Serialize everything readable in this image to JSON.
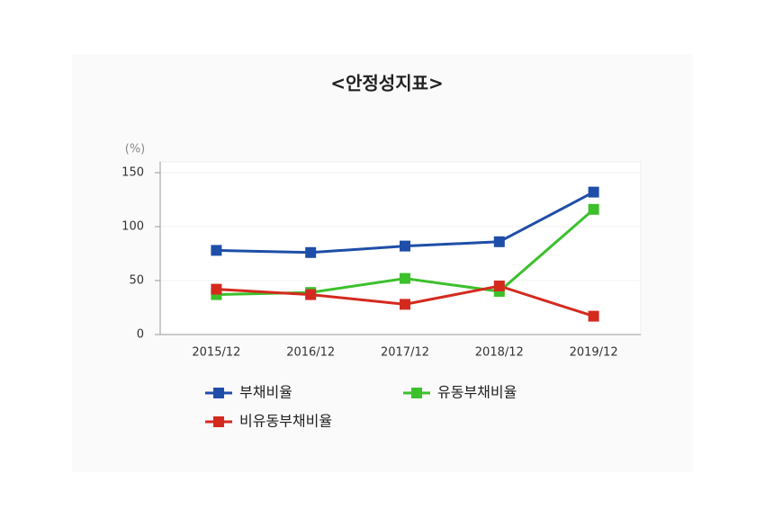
{
  "chart_data": {
    "type": "line",
    "title": "<안정성지표>",
    "y_label": "(%)",
    "categories": [
      "2015/12",
      "2016/12",
      "2017/12",
      "2018/12",
      "2019/12"
    ],
    "series": [
      {
        "name": "부채비율",
        "color": "#1f4ea8",
        "values": [
          78,
          76,
          82,
          86,
          132
        ]
      },
      {
        "name": "유동부채비율",
        "color": "#3cc02c",
        "values": [
          37,
          39,
          52,
          40,
          116
        ]
      },
      {
        "name": "비유동부채비율",
        "color": "#d42a1e",
        "values": [
          42,
          37,
          28,
          45,
          17
        ]
      }
    ],
    "ylim": [
      0,
      160
    ],
    "yticks": [
      0,
      50,
      100,
      150
    ],
    "grid": true
  }
}
